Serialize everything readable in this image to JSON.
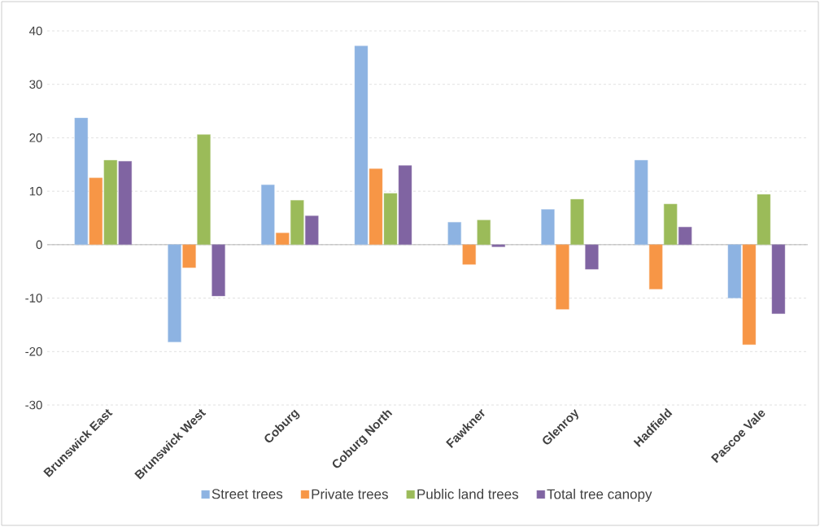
{
  "chart_data": {
    "type": "bar",
    "categories": [
      "Brunswick East",
      "Brunswick West",
      "Coburg",
      "Coburg North",
      "Fawkner",
      "Glenroy",
      "Hadfield",
      "Pascoe Vale"
    ],
    "series": [
      {
        "name": "Street trees",
        "color": "#8db3e2",
        "values": [
          23.7,
          -18.2,
          11.2,
          37.2,
          4.2,
          6.6,
          15.8,
          -10.0
        ]
      },
      {
        "name": "Private trees",
        "color": "#f79646",
        "values": [
          12.5,
          -4.3,
          2.2,
          14.2,
          -3.7,
          -12.1,
          -8.3,
          -18.7
        ]
      },
      {
        "name": "Public land trees",
        "color": "#9bbb59",
        "values": [
          15.8,
          20.6,
          8.3,
          9.6,
          4.6,
          8.5,
          7.6,
          9.4
        ]
      },
      {
        "name": "Total tree canopy",
        "color": "#8064a2",
        "values": [
          15.6,
          -9.6,
          5.4,
          14.8,
          -0.4,
          -4.6,
          3.3,
          -12.9
        ]
      }
    ],
    "ylim": [
      -30,
      40
    ],
    "yticks": [
      -30,
      -20,
      -10,
      0,
      10,
      20,
      30,
      40
    ],
    "grid": "y",
    "legend": "bottom"
  }
}
